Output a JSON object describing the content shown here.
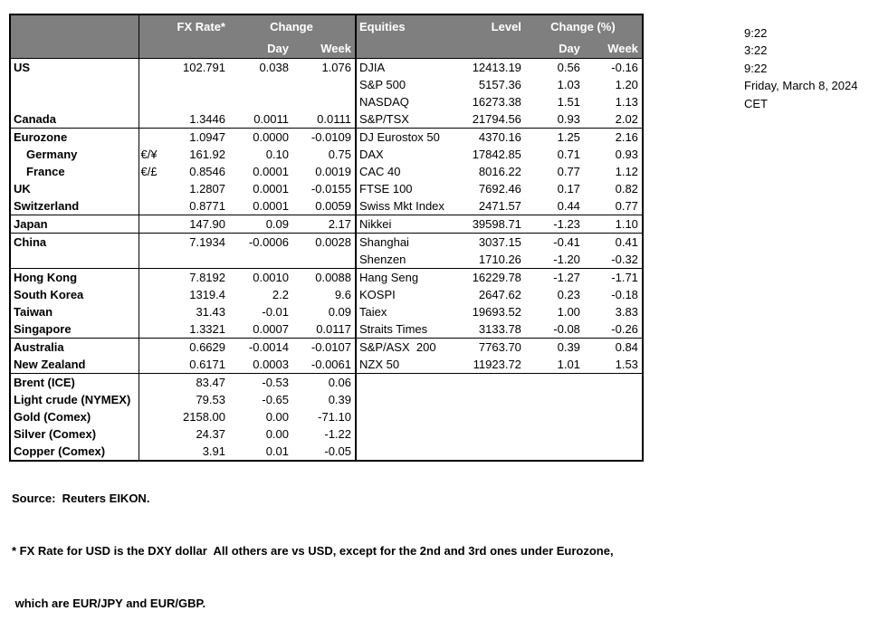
{
  "fx_table": {
    "header": {
      "fx_rate": "FX Rate*",
      "change": "Change",
      "day": "Day",
      "week": "Week"
    }
  },
  "equities_table": {
    "header": {
      "title": "Equities",
      "level": "Level",
      "change_pct": "Change (%)",
      "day": "Day",
      "week": "Week"
    }
  },
  "rows": [
    {
      "label": "US",
      "pair": "",
      "fx": "102.791",
      "fx_day": "0.038",
      "fx_week": "1.076",
      "equity": "DJIA",
      "level": "12413.19",
      "eq_day": "0.56",
      "eq_week": "-0.16",
      "section_start": false,
      "indent": false
    },
    {
      "label": "",
      "pair": "",
      "fx": "",
      "fx_day": "",
      "fx_week": "",
      "equity": "S&P 500",
      "level": "5157.36",
      "eq_day": "1.03",
      "eq_week": "1.20",
      "section_start": false,
      "indent": false
    },
    {
      "label": "",
      "pair": "",
      "fx": "",
      "fx_day": "",
      "fx_week": "",
      "equity": "NASDAQ",
      "level": "16273.38",
      "eq_day": "1.51",
      "eq_week": "1.13",
      "section_start": false,
      "indent": false
    },
    {
      "label": "Canada",
      "pair": "",
      "fx": "1.3446",
      "fx_day": "0.0011",
      "fx_week": "0.0111",
      "equity": "S&P/TSX",
      "level": "21794.56",
      "eq_day": "0.93",
      "eq_week": "2.02",
      "section_start": false,
      "indent": false
    },
    {
      "label": "Eurozone",
      "pair": "",
      "fx": "1.0947",
      "fx_day": "0.0000",
      "fx_week": "-0.0109",
      "equity": "DJ Eurostox 50",
      "level": "4370.16",
      "eq_day": "1.25",
      "eq_week": "2.16",
      "section_start": true,
      "indent": false
    },
    {
      "label": "Germany",
      "pair": "€/¥",
      "fx": "161.92",
      "fx_day": "0.10",
      "fx_week": "0.75",
      "equity": "DAX",
      "level": "17842.85",
      "eq_day": "0.71",
      "eq_week": "0.93",
      "section_start": false,
      "indent": true
    },
    {
      "label": "France",
      "pair": "€/£",
      "fx": "0.8546",
      "fx_day": "0.0001",
      "fx_week": "0.0019",
      "equity": "CAC 40",
      "level": "8016.22",
      "eq_day": "0.77",
      "eq_week": "1.12",
      "section_start": false,
      "indent": true
    },
    {
      "label": "UK",
      "pair": "",
      "fx": "1.2807",
      "fx_day": "0.0001",
      "fx_week": "-0.0155",
      "equity": "FTSE 100",
      "level": "7692.46",
      "eq_day": "0.17",
      "eq_week": "0.82",
      "section_start": false,
      "indent": false
    },
    {
      "label": "Switzerland",
      "pair": "",
      "fx": "0.8771",
      "fx_day": "0.0001",
      "fx_week": "0.0059",
      "equity": "Swiss Mkt Index",
      "level": "2471.57",
      "eq_day": "0.44",
      "eq_week": "0.77",
      "section_start": false,
      "indent": false
    },
    {
      "label": "Japan",
      "pair": "",
      "fx": "147.90",
      "fx_day": "0.09",
      "fx_week": "2.17",
      "equity": "Nikkei",
      "level": "39598.71",
      "eq_day": "-1.23",
      "eq_week": "1.10",
      "section_start": true,
      "indent": false
    },
    {
      "label": "China",
      "pair": "",
      "fx": "7.1934",
      "fx_day": "-0.0006",
      "fx_week": "0.0028",
      "equity": "Shanghai",
      "level": "3037.15",
      "eq_day": "-0.41",
      "eq_week": "0.41",
      "section_start": true,
      "indent": false
    },
    {
      "label": "",
      "pair": "",
      "fx": "",
      "fx_day": "",
      "fx_week": "",
      "equity": "Shenzen",
      "level": "1710.26",
      "eq_day": "-1.20",
      "eq_week": "-0.32",
      "section_start": false,
      "indent": false
    },
    {
      "label": "Hong Kong",
      "pair": "",
      "fx": "7.8192",
      "fx_day": "0.0010",
      "fx_week": "0.0088",
      "equity": "Hang Seng",
      "level": "16229.78",
      "eq_day": "-1.27",
      "eq_week": "-1.71",
      "section_start": true,
      "indent": false
    },
    {
      "label": "South Korea",
      "pair": "",
      "fx": "1319.4",
      "fx_day": "2.2",
      "fx_week": "9.6",
      "equity": "KOSPI",
      "level": "2647.62",
      "eq_day": "0.23",
      "eq_week": "-0.18",
      "section_start": false,
      "indent": false
    },
    {
      "label": "Taiwan",
      "pair": "",
      "fx": "31.43",
      "fx_day": "-0.01",
      "fx_week": "0.09",
      "equity": "Taiex",
      "level": "19693.52",
      "eq_day": "1.00",
      "eq_week": "3.83",
      "section_start": false,
      "indent": false
    },
    {
      "label": "Singapore",
      "pair": "",
      "fx": "1.3321",
      "fx_day": "0.0007",
      "fx_week": "0.0117",
      "equity": "Straits Times",
      "level": "3133.78",
      "eq_day": "-0.08",
      "eq_week": "-0.26",
      "section_start": false,
      "indent": false
    },
    {
      "label": "Australia",
      "pair": "",
      "fx": "0.6629",
      "fx_day": "-0.0014",
      "fx_week": "-0.0107",
      "equity": "S&P/ASX  200",
      "level": "7763.70",
      "eq_day": "0.39",
      "eq_week": "0.84",
      "section_start": true,
      "indent": false
    },
    {
      "label": "New Zealand",
      "pair": "",
      "fx": "0.6171",
      "fx_day": "0.0003",
      "fx_week": "-0.0061",
      "equity": "NZX 50",
      "level": "11923.72",
      "eq_day": "1.01",
      "eq_week": "1.53",
      "section_start": false,
      "indent": false
    },
    {
      "label": "Brent (ICE)",
      "pair": "",
      "fx": "83.47",
      "fx_day": "-0.53",
      "fx_week": "0.06",
      "equity": "",
      "level": "",
      "eq_day": "",
      "eq_week": "",
      "section_start": true,
      "indent": false
    },
    {
      "label": "Light crude (NYMEX)",
      "pair": "",
      "fx": "79.53",
      "fx_day": "-0.65",
      "fx_week": "0.39",
      "equity": "",
      "level": "",
      "eq_day": "",
      "eq_week": "",
      "section_start": false,
      "indent": false
    },
    {
      "label": "Gold (Comex)",
      "pair": "",
      "fx": "2158.00",
      "fx_day": "0.00",
      "fx_week": "-71.10",
      "equity": "",
      "level": "",
      "eq_day": "",
      "eq_week": "",
      "section_start": false,
      "indent": false
    },
    {
      "label": "Silver (Comex)",
      "pair": "",
      "fx": "24.37",
      "fx_day": "0.00",
      "fx_week": "-1.22",
      "equity": "",
      "level": "",
      "eq_day": "",
      "eq_week": "",
      "section_start": false,
      "indent": false
    },
    {
      "label": "Copper (Comex)",
      "pair": "",
      "fx": "3.91",
      "fx_day": "0.01",
      "fx_week": "-0.05",
      "equity": "",
      "level": "",
      "eq_day": "",
      "eq_week": "",
      "section_start": false,
      "indent": false
    }
  ],
  "times_panel": {
    "lines": [
      "9:22",
      "3:22",
      "9:22",
      "Friday, March 8, 2024",
      "CET"
    ]
  },
  "footer": {
    "source": "Source:  Reuters EIKON.",
    "footnote1": "* FX Rate for USD is the DXY dollar  All others are vs USD, except for the 2nd and 3rd ones under Eurozone,",
    "footnote2": " which are EUR/JPY and EUR/GBP."
  },
  "colors": {
    "header_bg": "#7f7f7f",
    "header_text": "#ffffff",
    "border": "#000000",
    "background": "#ffffff"
  }
}
